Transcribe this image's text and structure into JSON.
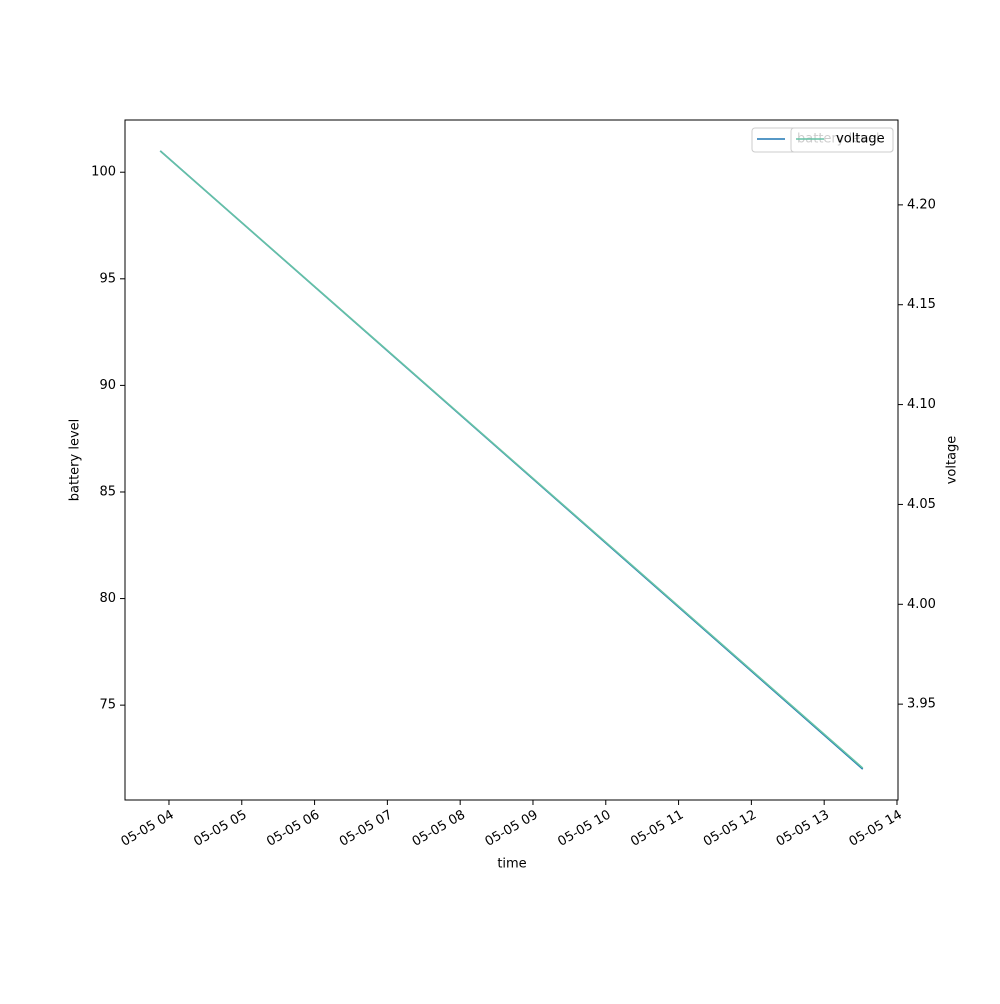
{
  "chart_data": {
    "type": "line",
    "xlabel": "time",
    "ylabel": "battery level",
    "y2label": "voltage",
    "x": [
      3.88,
      13.53
    ],
    "series": [
      {
        "name": "battery level",
        "color": "#1f77b4",
        "values": [
          101,
          72
        ]
      },
      {
        "name": "voltage",
        "color": "#66c2a5",
        "axis": "y2",
        "values": [
          4.227,
          3.918
        ]
      }
    ],
    "xlim": [
      3.396,
      14.014
    ],
    "xticks": [
      {
        "value": 4,
        "label": "05-05 04"
      },
      {
        "value": 5,
        "label": "05-05 05"
      },
      {
        "value": 6,
        "label": "05-05 06"
      },
      {
        "value": 7,
        "label": "05-05 07"
      },
      {
        "value": 8,
        "label": "05-05 08"
      },
      {
        "value": 9,
        "label": "05-05 09"
      },
      {
        "value": 10,
        "label": "05-05 10"
      },
      {
        "value": 11,
        "label": "05-05 11"
      },
      {
        "value": 12,
        "label": "05-05 12"
      },
      {
        "value": 13,
        "label": "05-05 13"
      },
      {
        "value": 14,
        "label": "05-05 14"
      }
    ],
    "ylim": [
      70.55,
      102.45
    ],
    "yticks": [
      75,
      80,
      85,
      90,
      95,
      100
    ],
    "y2lim": [
      3.902,
      4.2425
    ],
    "y2ticks": [
      3.95,
      {
        "value": 4,
        "label": "4.00"
      },
      4.05,
      {
        "value": 4.1,
        "label": "4.10"
      },
      4.15,
      {
        "value": 4.2,
        "label": "4.20"
      }
    ],
    "legend": "upper right"
  }
}
